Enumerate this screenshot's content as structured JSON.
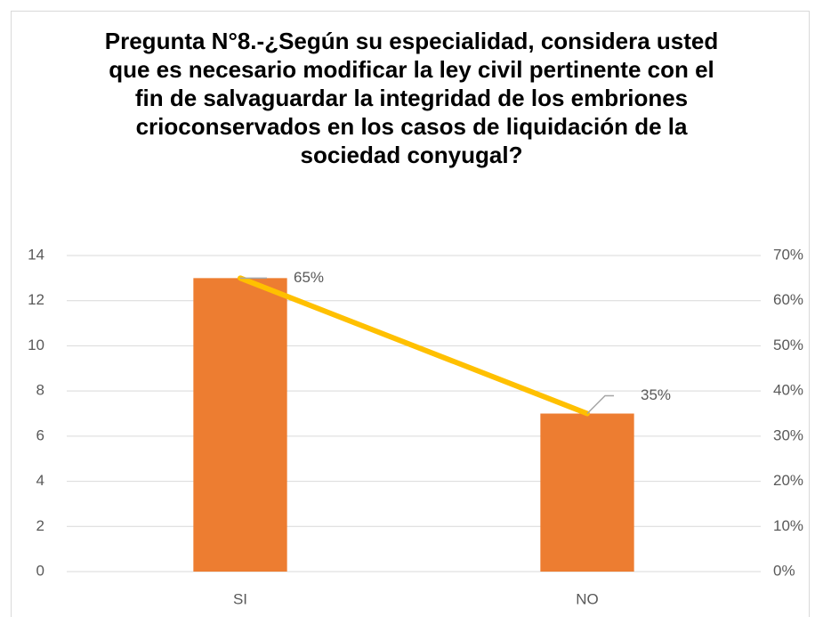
{
  "chart_data": {
    "type": "bar_line",
    "title": "Pregunta N°8.-¿Según su especialidad, considera usted que es necesario modificar la ley civil pertinente con el fin de salvaguardar la integridad de los embriones crioconservados en los casos de liquidación de la sociedad conyugal?",
    "categories": [
      "SI",
      "NO"
    ],
    "series": [
      {
        "type": "bar",
        "color": "#ED7D31",
        "values": [
          13,
          7
        ]
      },
      {
        "type": "line",
        "axis": "y2",
        "color": "#FFC000",
        "values": [
          65,
          35
        ],
        "value_labels": [
          "65%",
          "35%"
        ]
      }
    ],
    "ylim": [
      0,
      14
    ],
    "yticks": [
      0,
      2,
      4,
      6,
      8,
      10,
      12,
      14
    ],
    "y2lim": [
      0,
      70
    ],
    "y2ticks": [
      {
        "value": 0,
        "label": "0%"
      },
      {
        "value": 10,
        "label": "10%"
      },
      {
        "value": 20,
        "label": "20%"
      },
      {
        "value": 30,
        "label": "30%"
      },
      {
        "value": 40,
        "label": "40%"
      },
      {
        "value": 50,
        "label": "50%"
      },
      {
        "value": 60,
        "label": "60%"
      },
      {
        "value": 70,
        "label": "70%"
      }
    ],
    "grid": true
  }
}
